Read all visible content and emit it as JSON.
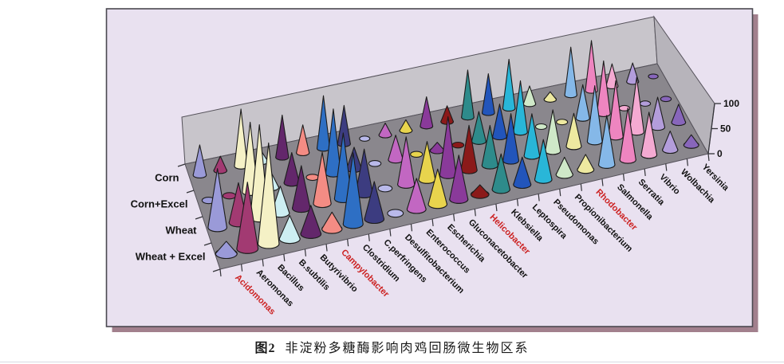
{
  "caption": {
    "prefix": "图2",
    "title": "非淀粉多糖酶影响肉鸡回肠微生物区系"
  },
  "chart_data": {
    "type": "bar",
    "variant": "3d-cone",
    "title": "",
    "xlabel": "",
    "ylabel": "",
    "zlim": [
      0,
      100
    ],
    "zticks": [
      0,
      50,
      100
    ],
    "grid": false,
    "legend_position": "none",
    "categories": [
      "Acidomonas",
      "Aeromonas",
      "Bacillus",
      "B.subtilis",
      "Butyrivibrio",
      "Campylobacter",
      "Clostridium",
      "C.perfringens",
      "Desulfitobacterium",
      "Enterococcus",
      "Escherichia",
      "Gluconacetobacter",
      "Helicobacter",
      "Klebsiella",
      "Leptospira",
      "Pseudomonas",
      "Propionibacterium",
      "Rhodobacter",
      "Salmonella",
      "Serratia",
      "Vibrio",
      "Wolbachia",
      "Yersinia"
    ],
    "red_label_categories": [
      "Acidomonas",
      "Campylobacter",
      "Helicobacter",
      "Rhodobacter"
    ],
    "series": [
      {
        "name": "Corn",
        "values": [
          52,
          25,
          100,
          18,
          75,
          50,
          95,
          70,
          8,
          22,
          20,
          55,
          30,
          90,
          75,
          95,
          35,
          15,
          95,
          100,
          45,
          38,
          10
        ]
      },
      {
        "name": "Corn+Excel",
        "values": [
          8,
          8,
          90,
          20,
          40,
          8,
          88,
          30,
          5,
          35,
          10,
          12,
          8,
          45,
          50,
          80,
          10,
          8,
          55,
          88,
          10,
          8,
          6
        ]
      },
      {
        "name": "Wheat",
        "values": [
          58,
          40,
          95,
          28,
          45,
          55,
          72,
          50,
          8,
          55,
          45,
          70,
          55,
          50,
          60,
          55,
          55,
          45,
          78,
          80,
          80,
          45,
          28
        ]
      },
      {
        "name": "Wheat + Excel",
        "values": [
          10,
          55,
          85,
          20,
          25,
          15,
          65,
          35,
          5,
          30,
          35,
          45,
          10,
          38,
          30,
          45,
          20,
          18,
          60,
          65,
          55,
          25,
          14
        ]
      }
    ],
    "category_colors": [
      "#9a9ad8",
      "#a23a72",
      "#f5f1c6",
      "#cdeef2",
      "#63276b",
      "#f48c84",
      "#2e6fc4",
      "#3c3c80",
      "#b9b9ea",
      "#c267c2",
      "#e8d44d",
      "#8a3a9a",
      "#8b1a1a",
      "#2e8b8b",
      "#2255bb",
      "#29b6d8",
      "#cfe8c8",
      "#eee9a0",
      "#85b8e8",
      "#ee85c0",
      "#f4aad2",
      "#b39ddb",
      "#8866bb"
    ],
    "palette": {
      "plot_bg": "#e9e1f0",
      "frame_border": "#4a4850",
      "frame_shadow": "#a2808d",
      "wall_back": "#c8c5cb",
      "wall_right": "#b7b4bb",
      "floor": "#8a878d",
      "edge_line": "#55525a",
      "axis_line": "#333338",
      "label_black": "#111111",
      "label_red": "#cc2222",
      "cone_outline": "#1c1c1c"
    }
  }
}
